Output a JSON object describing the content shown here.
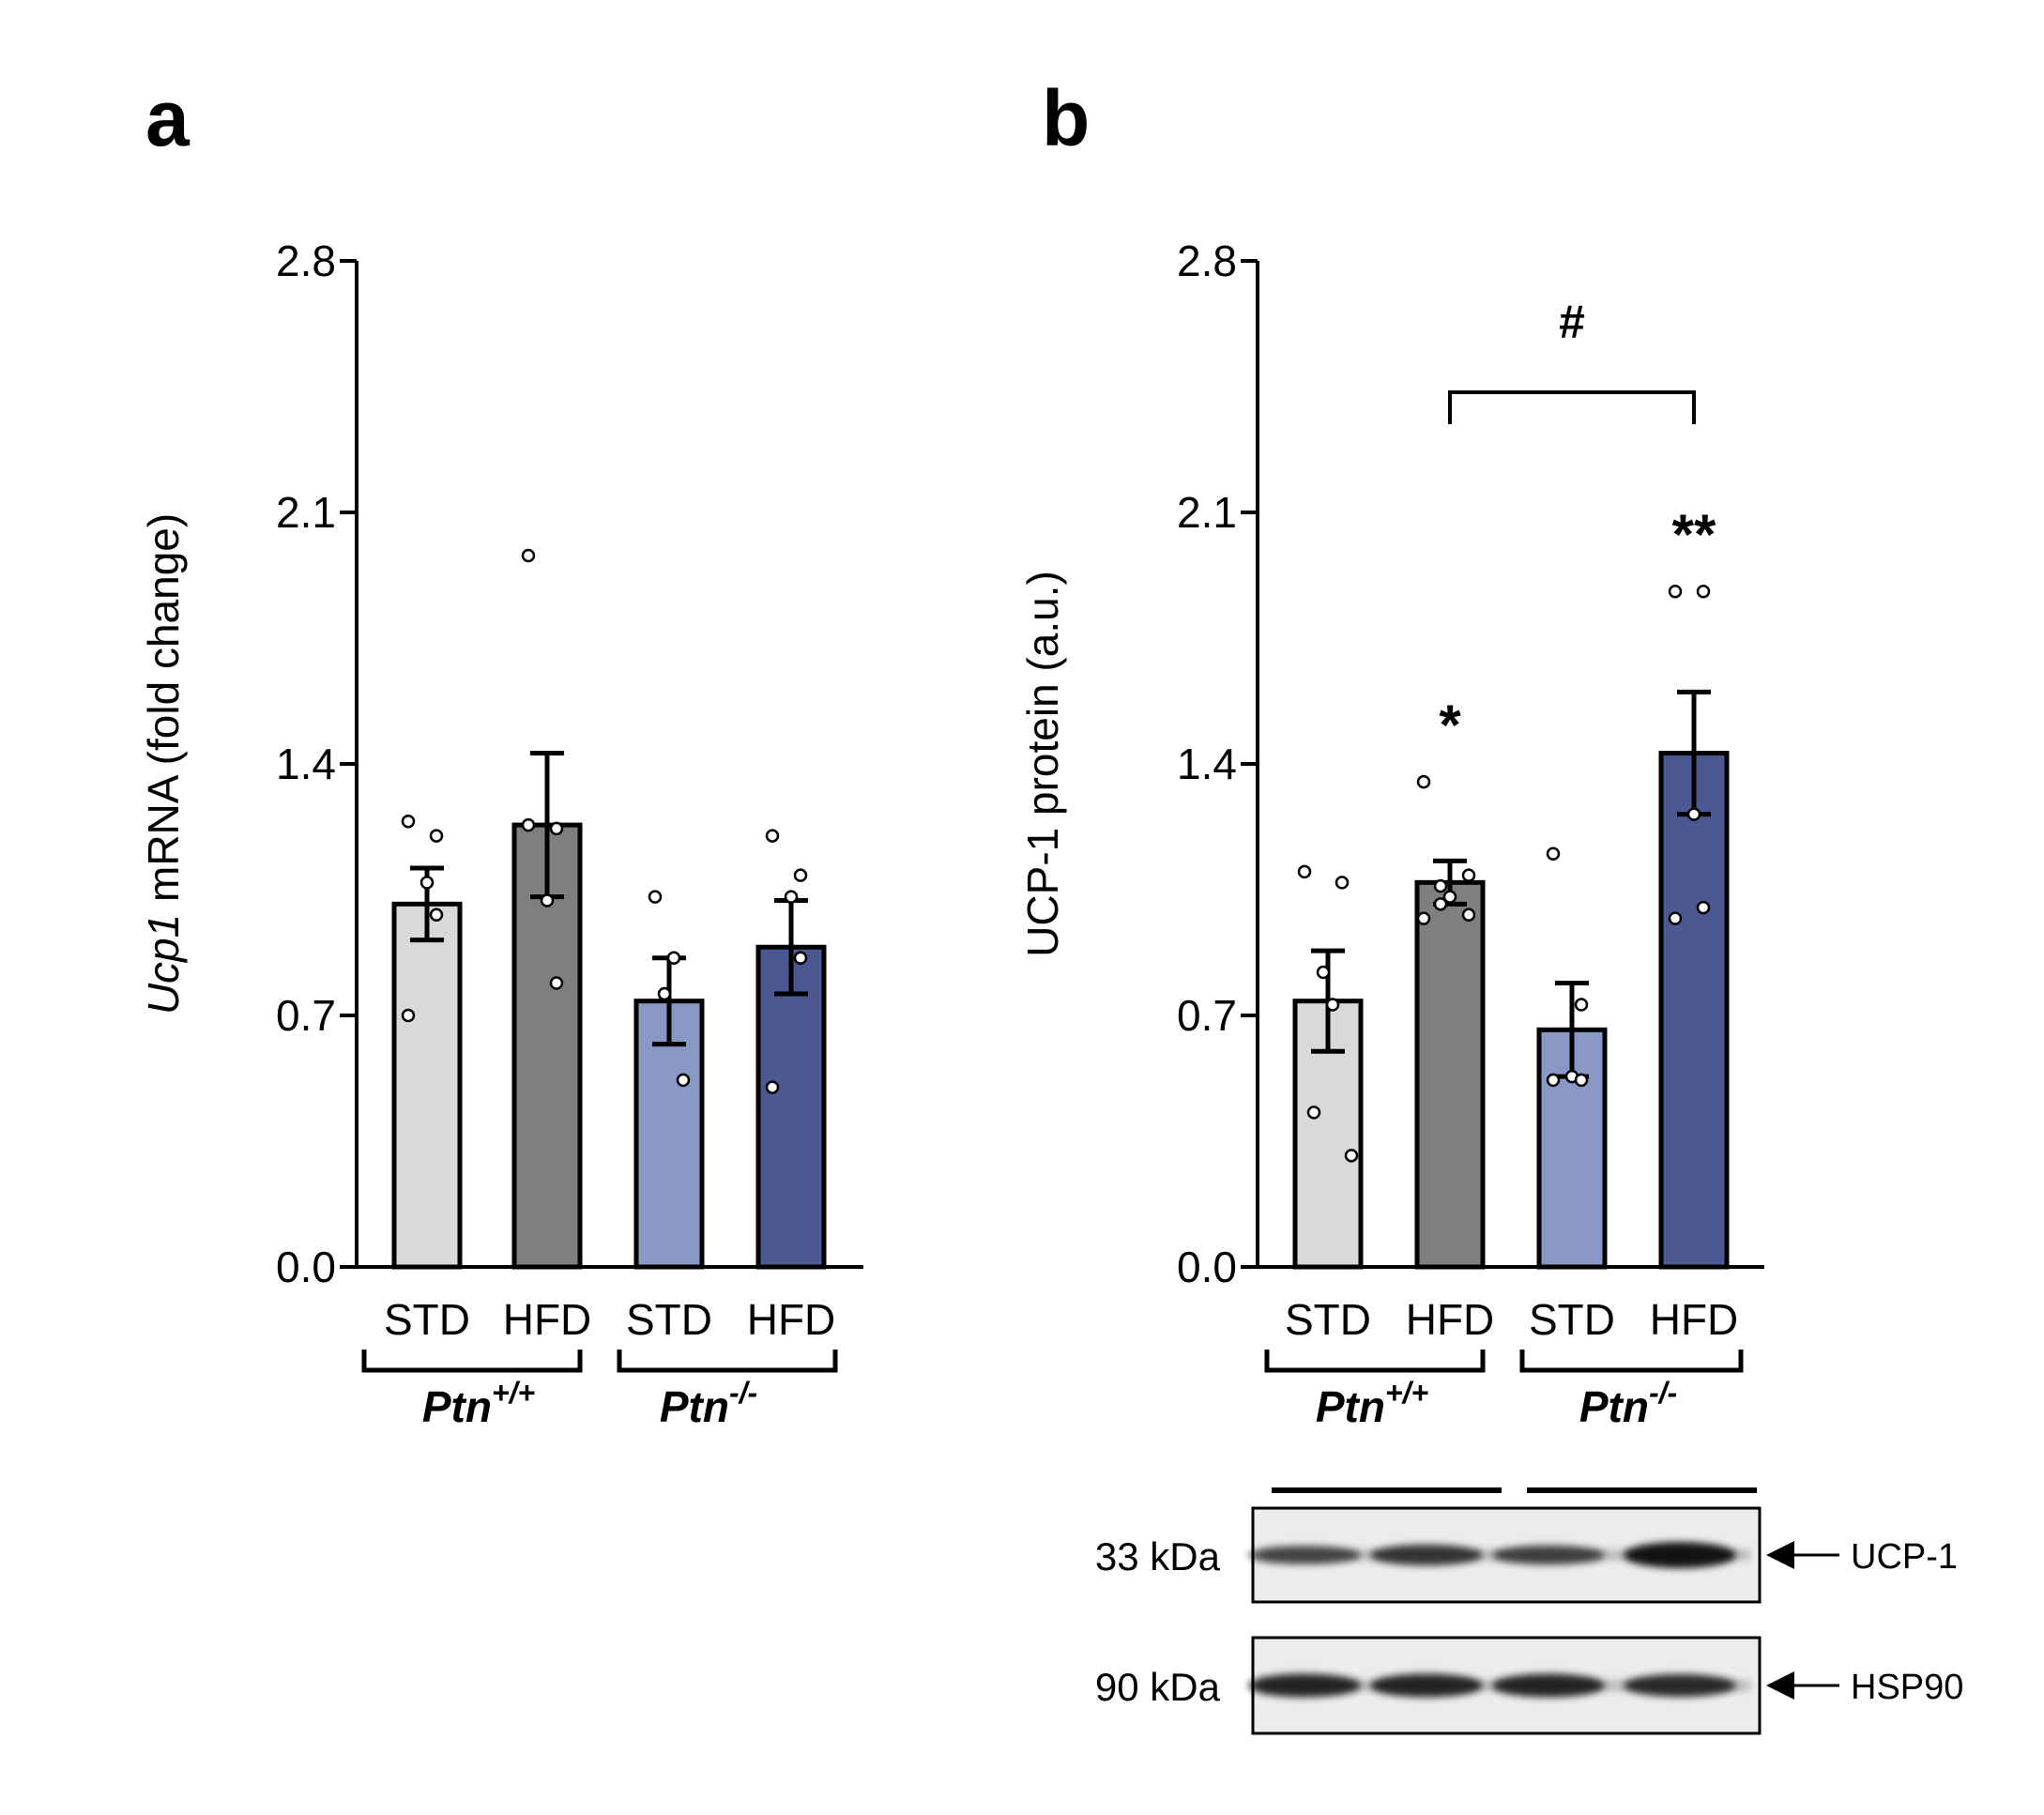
{
  "panels": {
    "a": {
      "label": "a"
    },
    "b": {
      "label": "b"
    }
  },
  "colors": {
    "ptn_wt_std": "#d9d9d9",
    "ptn_wt_hfd": "#7f7f7f",
    "ptn_ko_std": "#8a98c6",
    "ptn_ko_hfd": "#4b5891",
    "axis": "#000000"
  },
  "groups": [
    {
      "gene": "Ptn",
      "superscript": "+/+"
    },
    {
      "gene": "Ptn",
      "superscript": "-/-"
    }
  ],
  "chart_data": [
    {
      "id": "a",
      "type": "bar",
      "ylabel_italic": "Ucp1",
      "ylabel_rest": " mRNA (fold change)",
      "ylim": [
        0,
        2.8
      ],
      "yticks": [
        "0.0",
        "0.7",
        "1.4",
        "2.1",
        "2.8"
      ],
      "categories": [
        "STD",
        "HFD",
        "STD",
        "HFD"
      ],
      "values": [
        1.01,
        1.23,
        0.74,
        0.89
      ],
      "sem": [
        0.1,
        0.2,
        0.12,
        0.13
      ],
      "points": [
        [
          1.24,
          1.2,
          1.07,
          0.98,
          0.7
        ],
        [
          1.23,
          1.22,
          1.02,
          0.79,
          1.98
        ],
        [
          1.03,
          0.86,
          0.76,
          0.52
        ],
        [
          1.2,
          1.09,
          1.03,
          0.86,
          0.5
        ]
      ],
      "annotations": []
    },
    {
      "id": "b",
      "type": "bar",
      "ylabel": "UCP-1 protein (a.u.)",
      "ylim": [
        0,
        2.8
      ],
      "yticks": [
        "0.0",
        "0.7",
        "1.4",
        "2.1",
        "2.8"
      ],
      "categories": [
        "STD",
        "HFD",
        "STD",
        "HFD"
      ],
      "values": [
        0.74,
        1.07,
        0.66,
        1.43
      ],
      "sem": [
        0.14,
        0.06,
        0.13,
        0.17
      ],
      "points": [
        [
          1.1,
          1.07,
          0.82,
          0.73,
          0.43,
          0.31
        ],
        [
          1.35,
          1.09,
          1.06,
          1.03,
          1.01,
          0.98,
          0.97
        ],
        [
          1.15,
          0.73,
          0.53,
          0.52,
          0.52
        ],
        [
          1.88,
          1.88,
          1.26,
          1.0,
          0.97
        ]
      ],
      "annotations": [
        {
          "bar": 1,
          "text": "*"
        },
        {
          "bar": 3,
          "text": "**"
        }
      ],
      "bracket": {
        "from": 1,
        "to": 3,
        "text": "#"
      }
    }
  ],
  "blot": {
    "bands": [
      {
        "kda": "33 kDa",
        "protein": "UCP-1",
        "intensities": [
          0.55,
          0.7,
          0.6,
          1.0
        ]
      },
      {
        "kda": "90 kDa",
        "protein": "HSP90",
        "intensities": [
          0.85,
          0.85,
          0.85,
          0.8
        ]
      }
    ]
  }
}
